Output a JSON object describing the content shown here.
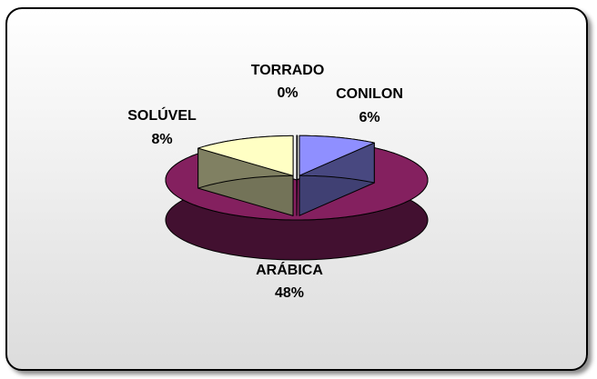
{
  "chart_data": {
    "type": "pie",
    "style": "3d-exploded",
    "title": "",
    "slices": [
      {
        "name": "CONILON",
        "value": 6,
        "label": "6%",
        "color": "#8f8fff"
      },
      {
        "name": "ARÁBICA",
        "value": 48,
        "label": "48%",
        "color": "#84205f"
      },
      {
        "name": "SOLÚVEL",
        "value": 8,
        "label": "8%",
        "color": "#ffffc4"
      },
      {
        "name": "TORRADO",
        "value": 0,
        "label": "0%",
        "color": "#ffffff"
      }
    ]
  },
  "colors": {
    "frame_border": "#000000",
    "background_top": "#ffffff",
    "background_bottom": "#dcdcdc"
  }
}
